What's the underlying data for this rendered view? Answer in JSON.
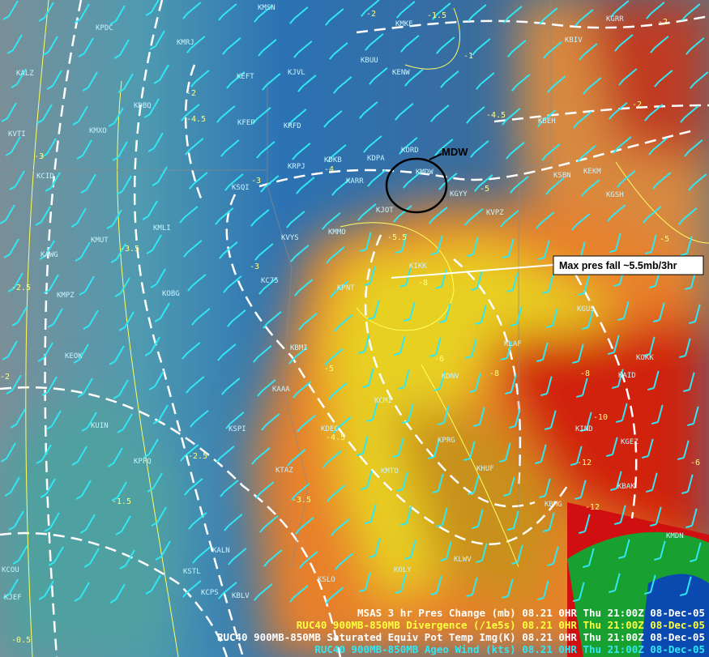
{
  "annotations": {
    "circle_label": "MDW",
    "pressure_note": "Max pres fall ~5.5mb/3hr"
  },
  "stations": [
    "KMSN",
    "KMKE",
    "KGRR",
    "KPDC",
    "KMRJ",
    "KBUU",
    "KENW",
    "KBIV",
    "KJVL",
    "KEFT",
    "KALZ",
    "KDBQ",
    "KFEP",
    "KRFD",
    "KBEH",
    "KMXO",
    "KVTI",
    "KORD",
    "KDPA",
    "KDKB",
    "KRPJ",
    "KCID",
    "KARR",
    "KMDW",
    "KGYY",
    "KSBN",
    "KEKM",
    "KGSH",
    "KSQI",
    "KJOT",
    "KVPZ",
    "KMLI",
    "KVYS",
    "KMMO",
    "KMUT",
    "KAWG",
    "KIKK",
    "KC75",
    "KOBG",
    "KPNT",
    "KMPZ",
    "KGUS",
    "KEOK",
    "KBMI",
    "KLAF",
    "KOKK",
    "KAID",
    "KDNV",
    "KCMI",
    "KAAA",
    "KUIN",
    "KSPI",
    "KDEC",
    "KPRG",
    "KIND",
    "KGEZ",
    "KTAZ",
    "KHUF",
    "KMTO",
    "KPPQ",
    "KBAK",
    "KBMG",
    "KMDN",
    "KALN",
    "KSTL",
    "KOLY",
    "KLWV",
    "KCPS",
    "KSLO",
    "KCOU",
    "KJEF",
    "KBLV"
  ],
  "contour_labels": [
    "-2",
    "-1.5",
    "-2",
    "-1",
    "-2",
    "-4.5",
    "-4.5",
    "-2",
    "-3",
    "-4",
    "-3",
    "-5",
    "-5.5",
    "-3.5",
    "-3",
    "-8",
    "-5",
    "-2.5",
    "-5",
    "-6",
    "-8",
    "-8",
    "-4.5",
    "-10",
    "-12",
    "-12",
    "-6",
    "-3.5",
    "-1.5",
    "-2.5",
    "-2",
    "-0.5"
  ],
  "legend": [
    "MSAS 3 hr Pres Change (mb)  08.21   0HR Thu 21:00Z 08-Dec-05",
    "RUC40 900MB-850MB Divergence (/1e5s)  08.21   0HR Thu 21:00Z 08-Dec-05",
    "RUC40 900MB-850MB Saturated Equiv Pot Temp Img(K)  08.21   0HR Thu 21:00Z 08-Dec-05",
    "RUC40 900MB-850MB Ageo Wind (kts)  08.21   0HR Thu 21:00Z 08-Dec-05"
  ]
}
